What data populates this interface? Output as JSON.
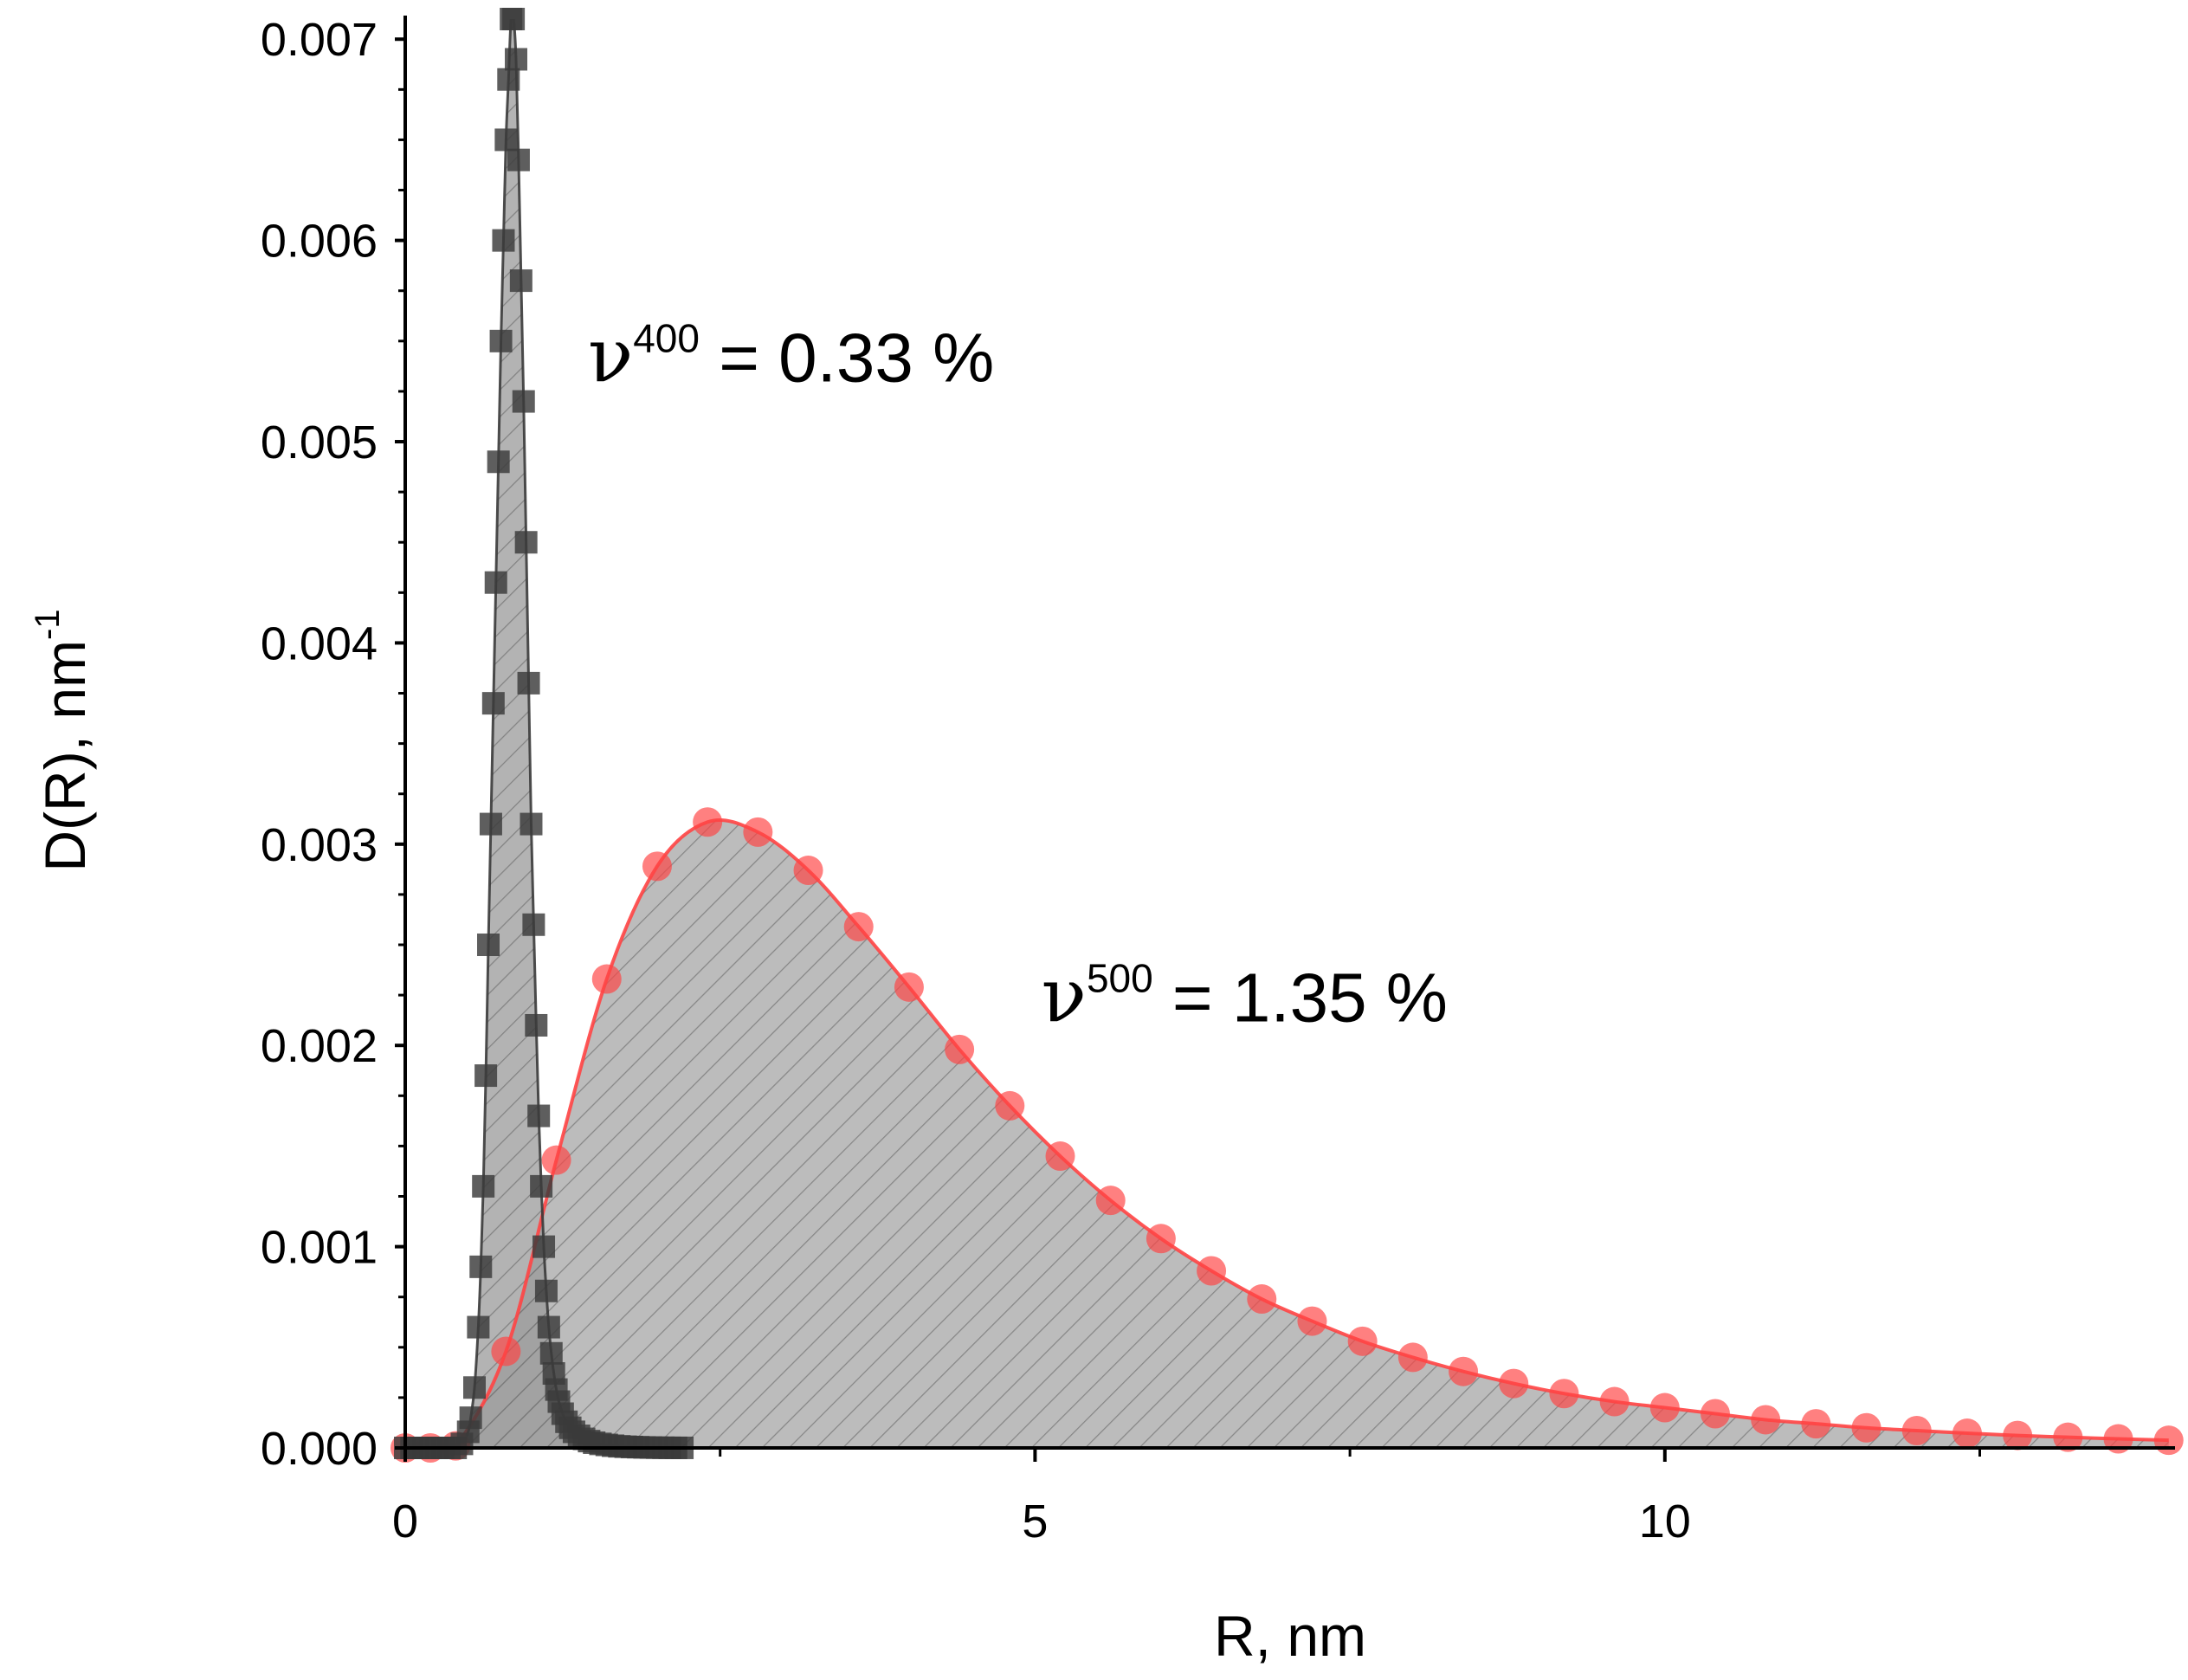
{
  "chart_data": {
    "type": "scatter",
    "title": "",
    "xlabel": "R, nm",
    "ylabel": "D(R), nm",
    "ylabel_exponent": "-1",
    "xlim": [
      0,
      14.05
    ],
    "ylim": [
      0,
      0.0071
    ],
    "x_ticks": [
      0,
      5,
      10
    ],
    "x_tick_labels": [
      "0",
      "5",
      "10"
    ],
    "y_ticks": [
      0,
      0.001,
      0.002,
      0.003,
      0.004,
      0.005,
      0.006,
      0.007
    ],
    "y_tick_labels": [
      "0.000",
      "0.001",
      "0.002",
      "0.003",
      "0.004",
      "0.005",
      "0.006",
      "0.007"
    ],
    "grid": false,
    "series": [
      {
        "name": "v400",
        "marker": "square",
        "color": "#3a3a3a",
        "fill": "#9a9a9a",
        "x": [
          0.0,
          0.05,
          0.1,
          0.15,
          0.2,
          0.25,
          0.3,
          0.35,
          0.4,
          0.45,
          0.5,
          0.52,
          0.55,
          0.58,
          0.6,
          0.62,
          0.64,
          0.66,
          0.68,
          0.7,
          0.72,
          0.74,
          0.76,
          0.78,
          0.8,
          0.82,
          0.84,
          0.86,
          0.88,
          0.9,
          0.92,
          0.94,
          0.96,
          0.98,
          1.0,
          1.02,
          1.04,
          1.06,
          1.08,
          1.1,
          1.12,
          1.14,
          1.16,
          1.18,
          1.2,
          1.22,
          1.25,
          1.28,
          1.31,
          1.34,
          1.38,
          1.42,
          1.46,
          1.5,
          1.55,
          1.6,
          1.65,
          1.7,
          1.75,
          1.8,
          1.85,
          1.9,
          1.95,
          2.0,
          2.05,
          2.1,
          2.15,
          2.2
        ],
        "y": [
          0.0,
          0.0,
          0.0,
          0.0,
          0.0,
          0.0,
          0.0,
          0.0,
          0.0,
          2e-05,
          8e-05,
          0.00015,
          0.0003,
          0.0006,
          0.0009,
          0.0013,
          0.00185,
          0.0025,
          0.0031,
          0.0037,
          0.0043,
          0.0049,
          0.0055,
          0.006,
          0.0065,
          0.0068,
          0.0071,
          0.0071,
          0.0069,
          0.0064,
          0.0058,
          0.0052,
          0.0045,
          0.0038,
          0.0031,
          0.0026,
          0.0021,
          0.00165,
          0.0013,
          0.001,
          0.00078,
          0.0006,
          0.00047,
          0.00037,
          0.00029,
          0.00023,
          0.00017,
          0.00013,
          0.0001,
          8e-05,
          6e-05,
          4.5e-05,
          3.4e-05,
          2.6e-05,
          2e-05,
          1.5e-05,
          1.1e-05,
          8e-06,
          6e-06,
          4.5e-06,
          3.5e-06,
          2.5e-06,
          1.8e-06,
          1.2e-06,
          8e-07,
          5e-07,
          3e-07,
          2e-07
        ]
      },
      {
        "name": "v500",
        "marker": "circle",
        "color": "#ff4444",
        "fill": "#b0b0b0",
        "x": [
          0.0,
          0.2,
          0.4,
          0.8,
          1.2,
          1.6,
          2.0,
          2.4,
          2.8,
          3.2,
          3.6,
          4.0,
          4.4,
          4.8,
          5.2,
          5.6,
          6.0,
          6.4,
          6.8,
          7.2,
          7.6,
          8.0,
          8.4,
          8.8,
          9.2,
          9.6,
          10.0,
          10.4,
          10.8,
          11.2,
          11.6,
          12.0,
          12.4,
          12.8,
          13.2,
          13.6,
          14.0
        ],
        "y": [
          0.0,
          0.0,
          1e-05,
          0.00048,
          0.00143,
          0.00233,
          0.00289,
          0.00311,
          0.00306,
          0.00287,
          0.00259,
          0.00229,
          0.00198,
          0.0017,
          0.00145,
          0.00123,
          0.00104,
          0.00088,
          0.00074,
          0.00063,
          0.00053,
          0.00045,
          0.00038,
          0.00032,
          0.00027,
          0.00023,
          0.0002,
          0.00017,
          0.00014,
          0.00012,
          0.0001,
          8.6e-05,
          7.3e-05,
          6.2e-05,
          5.3e-05,
          4.5e-05,
          3.8e-05
        ]
      }
    ],
    "annotations": [
      {
        "symbol": "ν",
        "superscript": "400",
        "text": " = 0.33 %",
        "x": 1.45,
        "y": 0.0053
      },
      {
        "symbol": "ν",
        "superscript": "500",
        "text": " = 1.35 %",
        "x": 5.05,
        "y": 0.00212
      }
    ]
  }
}
